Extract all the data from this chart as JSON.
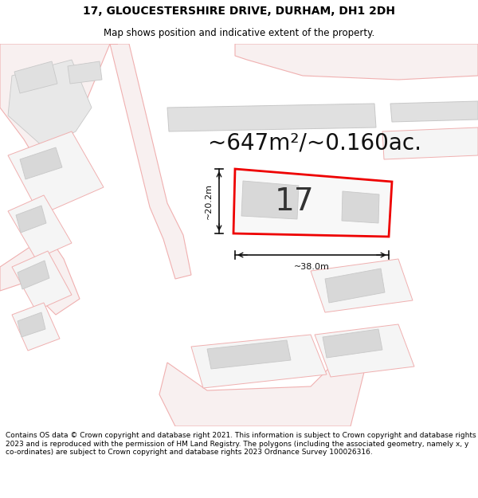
{
  "title_line1": "17, GLOUCESTERSHIRE DRIVE, DURHAM, DH1 2DH",
  "title_line2": "Map shows position and indicative extent of the property.",
  "area_text": "~647m²/~0.160ac.",
  "number_label": "17",
  "dim_width": "~38.0m",
  "dim_height": "~20.2m",
  "footer_text": "Contains OS data © Crown copyright and database right 2021. This information is subject to Crown copyright and database rights 2023 and is reproduced with the permission of HM Land Registry. The polygons (including the associated geometry, namely x, y co-ordinates) are subject to Crown copyright and database rights 2023 Ordnance Survey 100026316.",
  "bg_color": "#ffffff",
  "map_bg_color": "#ffffff",
  "property_fill": "#f0f0f0",
  "property_edge": "#ee0000",
  "road_outline_color": "#f0b0b0",
  "parcel_fill": "#e8e8e8",
  "parcel_edge": "#c8c8c8",
  "road_fill": "#ffffff",
  "dim_line_color": "#111111",
  "area_color": "#111111",
  "title_fontsize": 10,
  "subtitle_fontsize": 8.5,
  "area_fontsize": 20,
  "number_fontsize": 28,
  "dim_fontsize": 8,
  "footer_fontsize": 6.5
}
